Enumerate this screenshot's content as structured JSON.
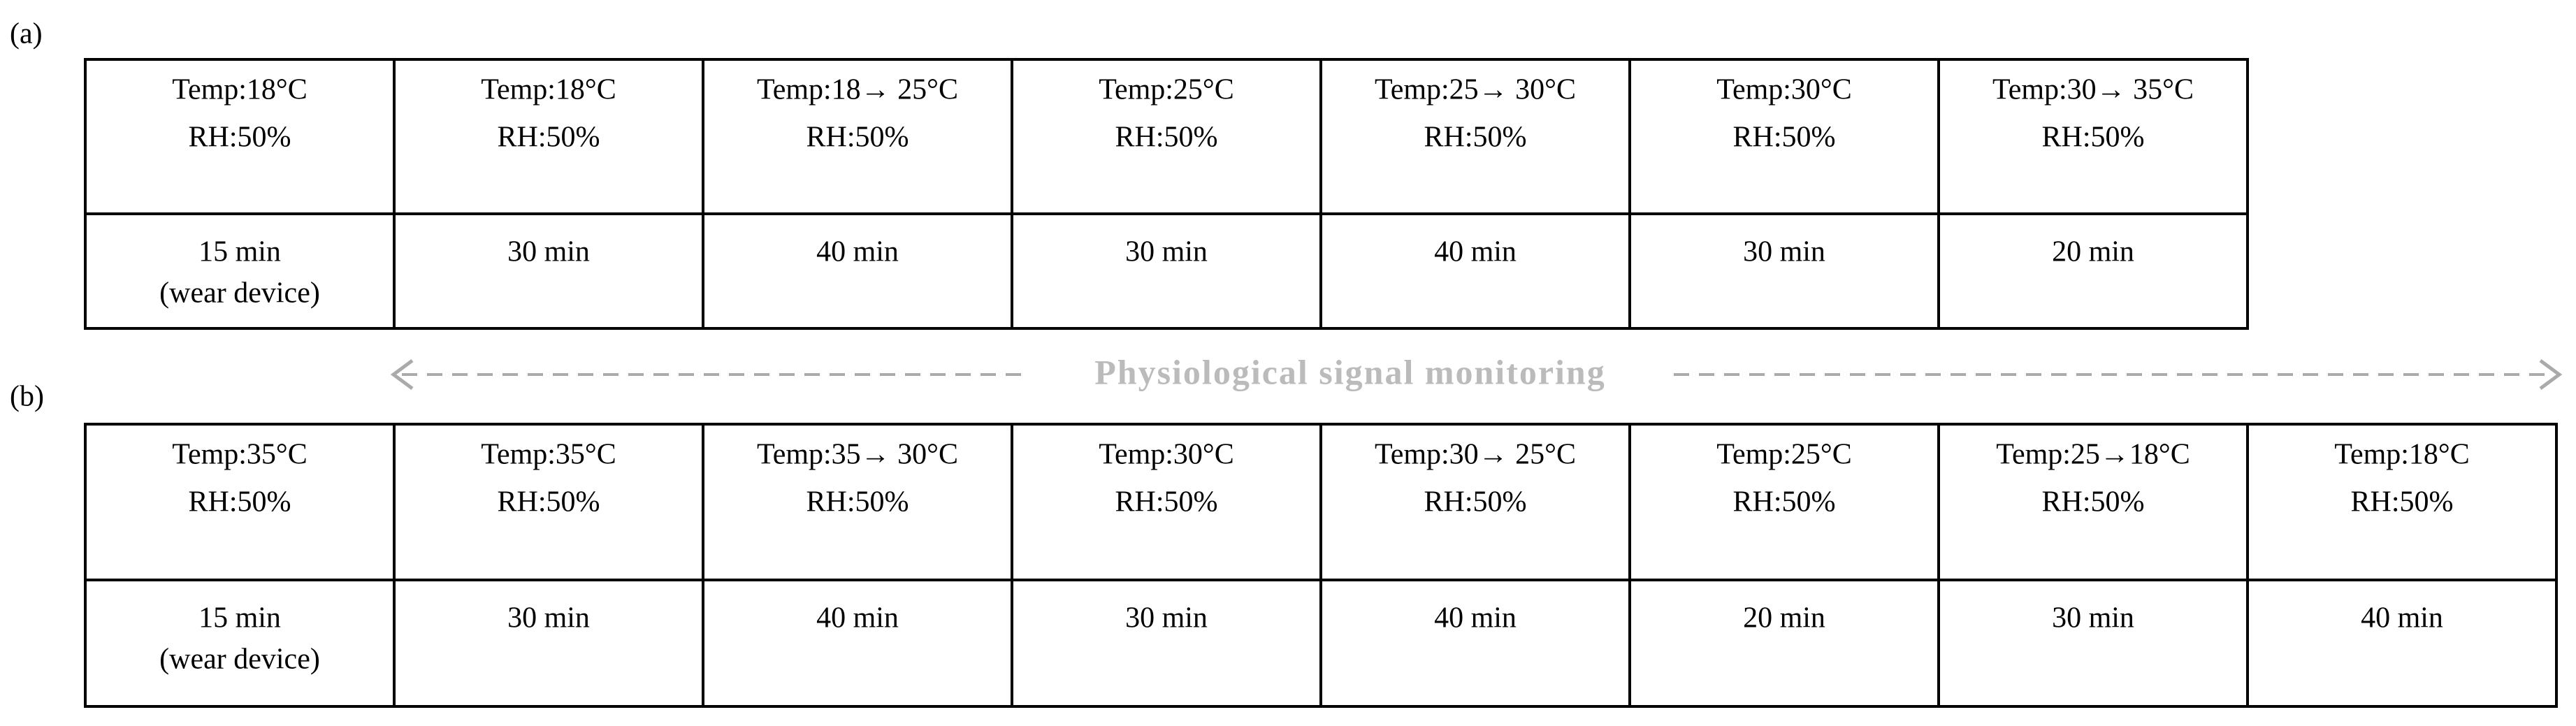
{
  "panels": [
    {
      "label": "(a)",
      "top": [
        [
          "Temp:18°C",
          "RH:50%"
        ],
        [
          "Temp:18°C",
          "RH:50%"
        ],
        [
          "Temp:18→ 25°C",
          "RH:50%"
        ],
        [
          "Temp:25°C",
          "RH:50%"
        ],
        [
          "Temp:25→ 30°C",
          "RH:50%"
        ],
        [
          "Temp:30°C",
          "RH:50%"
        ],
        [
          "Temp:30→ 35°C",
          "RH:50%"
        ]
      ],
      "bottom": [
        [
          "15 min",
          "(wear device)"
        ],
        [
          "30 min"
        ],
        [
          "40 min"
        ],
        [
          "30 min"
        ],
        [
          "40 min"
        ],
        [
          "30 min"
        ],
        [
          "20 min"
        ]
      ]
    },
    {
      "label": "(b)",
      "top": [
        [
          "Temp:35°C",
          "RH:50%"
        ],
        [
          "Temp:35°C",
          "RH:50%"
        ],
        [
          "Temp:35→ 30°C",
          "RH:50%"
        ],
        [
          "Temp:30°C",
          "RH:50%"
        ],
        [
          "Temp:30→ 25°C",
          "RH:50%"
        ],
        [
          "Temp:25°C",
          "RH:50%"
        ],
        [
          "Temp:25→18°C",
          "RH:50%"
        ],
        [
          "Temp:18°C",
          "RH:50%"
        ]
      ],
      "bottom": [
        [
          "15 min",
          "(wear device)"
        ],
        [
          "30 min"
        ],
        [
          "40 min"
        ],
        [
          "30 min"
        ],
        [
          "40 min"
        ],
        [
          "20 min"
        ],
        [
          "30 min"
        ],
        [
          "40 min"
        ]
      ]
    }
  ],
  "monitoring": "Physiological signal monitoring"
}
